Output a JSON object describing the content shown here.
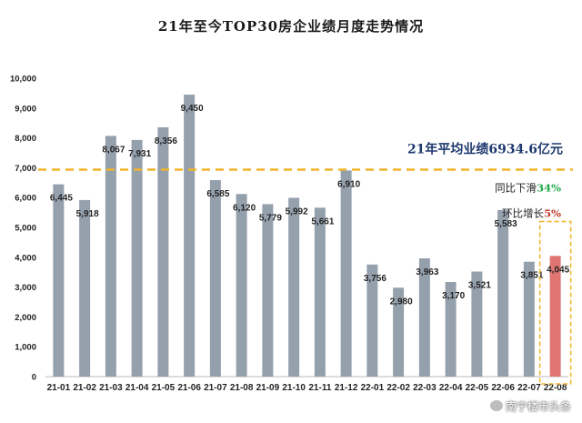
{
  "chart_data": {
    "type": "bar",
    "title": "21年至今TOP30房企业绩月度走势情况",
    "categories": [
      "21-01",
      "21-02",
      "21-03",
      "21-04",
      "21-05",
      "21-06",
      "21-07",
      "21-08",
      "21-09",
      "21-10",
      "21-11",
      "21-12",
      "22-01",
      "22-02",
      "22-03",
      "22-04",
      "22-05",
      "22-06",
      "22-07",
      "22-08"
    ],
    "values": [
      6445,
      5918,
      8067,
      7931,
      8356,
      9450,
      6585,
      6120,
      5779,
      5992,
      5661,
      6910,
      3756,
      2980,
      3963,
      3170,
      3521,
      5583,
      3851,
      4045
    ],
    "data_labels": [
      "6,445",
      "5,918",
      "8,067",
      "7,931",
      "8,356",
      "9,450",
      "6,585",
      "6,120",
      "5,779",
      "5,992",
      "5,661",
      "6,910",
      "3,756",
      "2,980",
      "3,963",
      "3,170",
      "3,521",
      "5,583",
      "3,851",
      "4,045"
    ],
    "y_ticks": [
      "0",
      "1,000",
      "2,000",
      "3,000",
      "4,000",
      "5,000",
      "6,000",
      "7,000",
      "8,000",
      "9,000",
      "10,000"
    ],
    "ylim": [
      0,
      10000
    ],
    "grid": false,
    "avg_line_value": 6934.6,
    "avg_label": "21年平均业绩6934.6亿元",
    "highlight_category": "22-08",
    "notes": {
      "yoy_text": "同比下滑",
      "yoy_value": "34%",
      "mom_text": "环比增长",
      "mom_value": "5%"
    },
    "colors": {
      "bar": "#95a0ad",
      "highlight_bar": "#e07572",
      "avg_line": "#f0b429",
      "highlight_box": "#f0b429",
      "yoy": "#1fa84a",
      "mom": "#c0392b"
    }
  },
  "watermark": "南宁楼市头条"
}
